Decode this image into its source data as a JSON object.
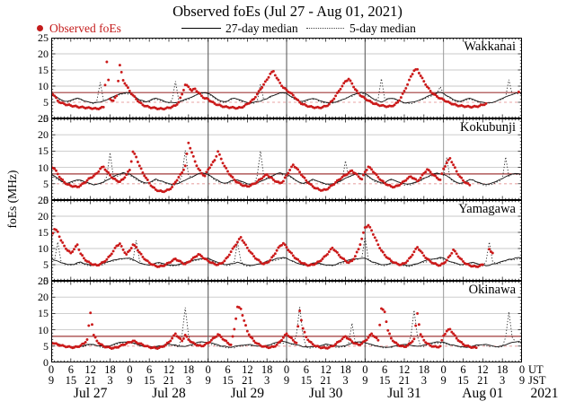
{
  "title": "Observed foEs (Jul 27 - Aug 01, 2021)",
  "legend": {
    "observed": "Observed foEs",
    "median27": "27-day median",
    "median5": "5-day median"
  },
  "ylabel": "foEs (MHz)",
  "axis": {
    "y_ticks": [
      0,
      5,
      10,
      15,
      20,
      25
    ],
    "ut_labels": [
      "0",
      "6",
      "12",
      "18",
      "0",
      "6",
      "12",
      "18",
      "0",
      "6",
      "12",
      "18",
      "0",
      "6",
      "12",
      "18",
      "0",
      "6",
      "12",
      "18",
      "0",
      "6",
      "12",
      "18",
      "0"
    ],
    "jst_labels": [
      "9",
      "15",
      "21",
      "3",
      "9",
      "15",
      "21",
      "3",
      "9",
      "15",
      "21",
      "3",
      "9",
      "15",
      "21",
      "3",
      "9",
      "15",
      "21",
      "3",
      "9",
      "15",
      "21",
      "3",
      "9"
    ],
    "ut_suffix": "UT",
    "jst_suffix": "JST",
    "days": [
      "Jul 27",
      "Jul 28",
      "Jul 29",
      "Jul 30",
      "Jul 31",
      "Aug 01"
    ],
    "year": "2021",
    "hours_total": 144,
    "ylim": [
      0,
      25
    ]
  },
  "day_lines": {
    "dark_at_hours": [
      48,
      72,
      96
    ],
    "light_at_hours": [
      120
    ]
  },
  "colors": {
    "observed_dot": "#cb1a1a",
    "legend_observed_text": "#c41b1b",
    "median27_line": "#101010",
    "median5_line": "#2a2a2a",
    "threshold_solid": "#a03a3a",
    "threshold_dashed": "#e8a6a6",
    "gridline": "#c8c8c8",
    "day_line_dark": "#606060",
    "day_line_light": "#9a9a9a",
    "panel_border": "#000000",
    "text": "#000000"
  },
  "chart_data": [
    {
      "type": "scatter",
      "station": "Wakkanai",
      "ylim": [
        0,
        25
      ],
      "threshold_lines": {
        "solid_red": 8,
        "dashed_pink": 5
      },
      "observed_hourly": [
        8.2,
        7.0,
        5.5,
        4.8,
        4.5,
        4.2,
        4.0,
        3.8,
        3.6,
        3.5,
        3.4,
        3.3,
        3.2,
        3.1,
        3.0,
        3.2,
        3.5,
        17.5,
        6.0,
        5.5,
        7.0,
        16.5,
        11.8,
        10.2,
        8.5,
        7.2,
        6.0,
        5.0,
        4.2,
        3.8,
        3.5,
        3.3,
        3.2,
        3.0,
        3.0,
        3.1,
        3.3,
        3.6,
        4.0,
        5.0,
        7.5,
        10.4,
        9.8,
        8.6,
        9.2,
        8.0,
        7.0,
        6.2,
        6.0,
        5.2,
        4.6,
        4.2,
        3.9,
        3.6,
        3.5,
        3.4,
        3.3,
        3.2,
        3.4,
        3.8,
        4.5,
        5.2,
        6.0,
        7.5,
        9.0,
        10.5,
        12.0,
        13.8,
        14.6,
        12.5,
        11.0,
        9.5,
        8.8,
        8.0,
        7.2,
        6.0,
        5.0,
        4.4,
        4.0,
        3.7,
        3.5,
        3.4,
        3.3,
        3.5,
        3.8,
        4.4,
        5.5,
        7.0,
        8.5,
        10.0,
        11.5,
        12.2,
        10.8,
        9.0,
        7.8,
        6.8,
        6.2,
        5.5,
        5.0,
        4.5,
        4.2,
        4.0,
        3.8,
        3.7,
        3.8,
        4.2,
        5.0,
        6.5,
        8.5,
        10.5,
        13.0,
        14.8,
        15.2,
        13.2,
        11.5,
        9.8,
        8.5,
        7.5,
        6.8,
        6.2,
        5.8,
        5.2,
        4.8,
        4.4,
        4.1,
        3.9,
        3.8,
        3.7,
        3.6,
        3.6,
        3.7,
        3.9,
        4.2,
        4.6,
        null,
        null,
        null,
        null,
        null,
        null,
        null,
        null,
        null,
        8.2,
        null
      ],
      "median27_diurnal": [
        7.8,
        7.1,
        6.4,
        5.8,
        5.4,
        5.2,
        5.5,
        6.0,
        6.3,
        6.0,
        5.6,
        5.2,
        4.9,
        4.8,
        4.9,
        5.1,
        5.4,
        5.8,
        6.2,
        6.7,
        7.1,
        7.5,
        7.9,
        8.0
      ],
      "median5_base": [
        7.5,
        6.9,
        6.2,
        5.6,
        5.2,
        5.0,
        5.3,
        5.8,
        6.1,
        5.8,
        5.4,
        5.0,
        4.7,
        4.6,
        4.7,
        5.0,
        5.3,
        5.7,
        6.1,
        6.6,
        7.0,
        7.4,
        7.8,
        7.8
      ],
      "median5_spikes": [
        [
          15,
          11.2
        ],
        [
          38,
          11.5
        ],
        [
          64,
          10.6
        ],
        [
          101,
          12.3
        ],
        [
          119,
          9.8
        ],
        [
          140,
          12.0
        ]
      ]
    },
    {
      "type": "scatter",
      "station": "Kokubunji",
      "ylim": [
        0,
        25
      ],
      "threshold_lines": {
        "solid_red": 8,
        "dashed_pink": 5
      },
      "observed_hourly": [
        10.4,
        9.6,
        8.0,
        6.5,
        5.5,
        4.8,
        4.4,
        4.2,
        4.0,
        4.5,
        5.2,
        6.0,
        6.8,
        7.4,
        8.2,
        9.6,
        10.2,
        8.8,
        7.6,
        6.6,
        6.0,
        5.6,
        6.4,
        7.8,
        9.2,
        14.8,
        13.2,
        10.5,
        8.4,
        6.8,
        5.2,
        4.0,
        3.2,
        2.8,
        2.6,
        2.8,
        3.2,
        4.0,
        5.5,
        7.0,
        8.4,
        10.5,
        17.5,
        14.6,
        11.8,
        9.6,
        8.2,
        7.4,
        9.4,
        10.8,
        12.2,
        14.9,
        12.6,
        10.4,
        8.8,
        7.4,
        6.2,
        5.4,
        4.8,
        4.4,
        4.2,
        4.5,
        5.0,
        5.6,
        6.4,
        7.2,
        7.8,
        7.0,
        6.2,
        5.6,
        5.2,
        5.8,
        7.6,
        9.2,
        10.8,
        9.8,
        8.6,
        7.2,
        6.0,
        5.0,
        4.2,
        3.6,
        3.2,
        3.0,
        3.2,
        3.8,
        4.6,
        5.4,
        6.2,
        7.0,
        7.6,
        8.4,
        9.0,
        8.2,
        7.2,
        6.4,
        8.6,
        10.2,
        9.4,
        8.2,
        7.0,
        6.0,
        5.2,
        4.6,
        4.2,
        4.0,
        4.4,
        5.0,
        5.8,
        6.6,
        7.2,
        6.6,
        5.8,
        6.8,
        8.2,
        9.4,
        8.6,
        7.6,
        6.8,
        6.2,
        9.6,
        11.4,
        12.8,
        10.8,
        8.8,
        7.2,
        6.0,
        5.2,
        4.6,
        null,
        null,
        null,
        null,
        null,
        null,
        null,
        null,
        null,
        null,
        null,
        null,
        null,
        null,
        null,
        null
      ],
      "median27_diurnal": [
        7.9,
        7.3,
        6.6,
        6.0,
        5.5,
        5.2,
        5.4,
        5.9,
        6.3,
        6.1,
        5.7,
        5.3,
        5.0,
        4.8,
        4.9,
        5.2,
        5.6,
        6.1,
        6.6,
        7.1,
        7.6,
        8.0,
        8.3,
        8.1
      ],
      "median5_base": [
        7.6,
        7.0,
        6.3,
        5.7,
        5.3,
        5.0,
        5.2,
        5.7,
        6.1,
        5.9,
        5.5,
        5.1,
        4.8,
        4.6,
        4.7,
        5.0,
        5.4,
        5.9,
        6.4,
        6.9,
        7.4,
        7.8,
        8.1,
        7.9
      ],
      "median5_spikes": [
        [
          18,
          14.5
        ],
        [
          41,
          15.2
        ],
        [
          64,
          15.0
        ],
        [
          90,
          12.0
        ],
        [
          121,
          13.0
        ],
        [
          139,
          13.2
        ]
      ]
    },
    {
      "type": "scatter",
      "station": "Yamagawa",
      "ylim": [
        0,
        25
      ],
      "threshold_lines": null,
      "observed_hourly": [
        13.8,
        16.0,
        15.2,
        12.5,
        10.8,
        9.4,
        8.6,
        9.8,
        11.2,
        8.4,
        7.0,
        6.0,
        5.4,
        5.0,
        4.8,
        5.2,
        5.8,
        6.6,
        7.8,
        9.2,
        10.8,
        11.5,
        9.6,
        8.2,
        9.4,
        11.2,
        10.4,
        8.8,
        7.4,
        6.4,
        5.6,
        5.0,
        4.6,
        4.4,
        4.6,
        5.0,
        5.6,
        6.2,
        6.8,
        6.2,
        5.6,
        5.2,
        5.8,
        6.6,
        7.4,
        8.2,
        7.6,
        6.8,
        6.2,
        5.6,
        5.2,
        5.0,
        5.4,
        6.2,
        7.4,
        9.0,
        10.6,
        12.0,
        13.5,
        11.8,
        10.2,
        8.8,
        7.6,
        6.6,
        5.8,
        5.2,
        5.6,
        6.4,
        7.8,
        9.4,
        10.8,
        11.6,
        10.4,
        9.0,
        7.8,
        6.8,
        6.0,
        5.4,
        5.0,
        4.8,
        5.0,
        5.4,
        6.0,
        6.8,
        7.8,
        9.0,
        10.2,
        9.2,
        8.0,
        7.0,
        6.2,
        5.6,
        6.2,
        7.6,
        9.8,
        13.0,
        16.5,
        17.2,
        15.6,
        13.4,
        11.2,
        9.4,
        8.0,
        7.0,
        6.2,
        5.6,
        5.2,
        5.0,
        5.4,
        6.2,
        7.4,
        9.0,
        10.4,
        9.2,
        7.8,
        6.8,
        6.0,
        5.4,
        5.0,
        4.8,
        5.4,
        6.4,
        7.8,
        9.6,
        8.4,
        7.0,
        6.0,
        5.2,
        4.8,
        4.5,
        4.4,
        4.6,
        5.0,
        null,
        9.8,
        8.6,
        null,
        null,
        null,
        null,
        null,
        null,
        null,
        null,
        null
      ],
      "median27_diurnal": [
        7.0,
        6.5,
        6.0,
        5.6,
        5.3,
        5.1,
        5.0,
        5.2,
        5.5,
        5.7,
        5.4,
        5.1,
        4.9,
        4.8,
        4.9,
        5.1,
        5.4,
        5.7,
        6.0,
        6.3,
        6.6,
        6.8,
        7.0,
        7.1
      ],
      "median5_base": [
        6.8,
        6.3,
        5.8,
        5.4,
        5.1,
        4.9,
        4.8,
        5.0,
        5.3,
        5.5,
        5.2,
        4.9,
        4.7,
        4.6,
        4.7,
        4.9,
        5.2,
        5.5,
        5.8,
        6.1,
        6.4,
        6.6,
        6.8,
        6.9
      ],
      "median5_spikes": [
        [
          2,
          12.0
        ],
        [
          26,
          12.5
        ],
        [
          57,
          12.0
        ],
        [
          96,
          13.5
        ],
        [
          134,
          12.0
        ]
      ]
    },
    {
      "type": "scatter",
      "station": "Okinawa",
      "ylim": [
        0,
        25
      ],
      "threshold_lines": {
        "solid_red": 8,
        "dashed_pink": 5
      },
      "observed_hourly": [
        6.2,
        5.8,
        5.5,
        5.2,
        5.0,
        4.8,
        4.7,
        4.6,
        4.8,
        5.2,
        5.8,
        7.0,
        15.2,
        8.4,
        6.6,
        5.6,
        5.0,
        4.7,
        4.5,
        4.4,
        4.6,
        5.0,
        5.4,
        5.8,
        6.2,
        6.6,
        6.2,
        5.8,
        5.4,
        5.0,
        4.7,
        4.5,
        4.4,
        4.5,
        4.8,
        5.4,
        6.2,
        7.4,
        8.8,
        7.6,
        6.6,
        8.4,
        7.0,
        6.2,
        5.6,
        5.2,
        5.0,
        5.4,
        6.0,
        6.8,
        7.6,
        8.6,
        7.8,
        6.8,
        6.0,
        5.4,
        10.2,
        17.0,
        16.4,
        12.8,
        9.6,
        7.8,
        6.6,
        5.8,
        5.2,
        4.9,
        4.7,
        4.6,
        4.8,
        5.4,
        6.4,
        7.6,
        8.8,
        7.8,
        6.8,
        6.0,
        15.8,
        10.4,
        7.8,
        6.4,
        5.6,
        5.0,
        4.7,
        4.5,
        4.4,
        4.6,
        5.0,
        5.6,
        6.4,
        7.2,
        8.0,
        7.2,
        6.4,
        5.8,
        5.4,
        5.8,
        6.6,
        7.6,
        8.8,
        7.8,
        6.8,
        16.5,
        15.5,
        9.8,
        7.4,
        6.2,
        5.5,
        5.0,
        4.8,
        5.2,
        6.0,
        7.2,
        15.0,
        8.6,
        6.8,
        5.8,
        5.2,
        4.9,
        4.7,
        5.0,
        8.2,
        9.6,
        10.2,
        8.8,
        7.4,
        6.4,
        5.6,
        5.1,
        4.8,
        4.6,
        4.5,
        null,
        null,
        null,
        null,
        null,
        null,
        null,
        null,
        null,
        null,
        null,
        null,
        null,
        null
      ],
      "median27_diurnal": [
        6.2,
        5.9,
        5.6,
        5.3,
        5.1,
        4.9,
        4.8,
        4.7,
        4.8,
        5.0,
        5.2,
        5.4,
        5.5,
        5.4,
        5.2,
        5.0,
        4.9,
        5.0,
        5.2,
        5.5,
        5.8,
        6.1,
        6.3,
        6.3
      ],
      "median5_base": [
        6.0,
        5.7,
        5.4,
        5.1,
        4.9,
        4.7,
        4.6,
        4.5,
        4.6,
        4.8,
        5.0,
        5.2,
        5.3,
        5.2,
        5.0,
        4.8,
        4.7,
        4.8,
        5.0,
        5.3,
        5.6,
        5.9,
        6.1,
        6.1
      ],
      "median5_spikes": [
        [
          41,
          16.8
        ],
        [
          76,
          17.0
        ],
        [
          92,
          12.0
        ],
        [
          111,
          16.0
        ],
        [
          140,
          15.5
        ]
      ]
    }
  ]
}
